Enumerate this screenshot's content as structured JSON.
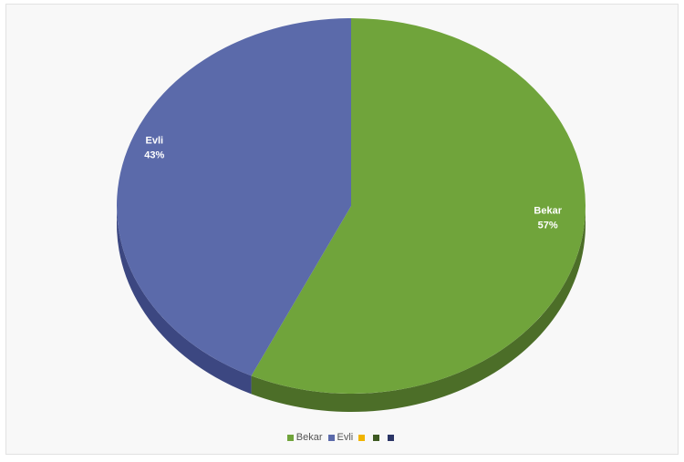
{
  "chart_data": {
    "type": "pie",
    "style": "3d",
    "categories": [
      "Bekar",
      "Evli"
    ],
    "values": [
      57,
      43
    ],
    "data_labels": [
      {
        "name": "Bekar",
        "value": "57%"
      },
      {
        "name": "Evli",
        "value": "43%"
      }
    ],
    "legend": {
      "placement": "bottom",
      "entries": [
        {
          "label": "Bekar",
          "color": "#70a43b"
        },
        {
          "label": "Evli",
          "color": "#5b6aaa"
        },
        {
          "label": "",
          "color": "#f0b400"
        },
        {
          "label": "",
          "color": "#3e5a22"
        },
        {
          "label": "",
          "color": "#2b3566"
        }
      ]
    },
    "colors": {
      "Bekar": "#70a43b",
      "Evli": "#5b6aaa",
      "Bekar_side": "#4c6e28",
      "Evli_side": "#3c4781"
    }
  }
}
